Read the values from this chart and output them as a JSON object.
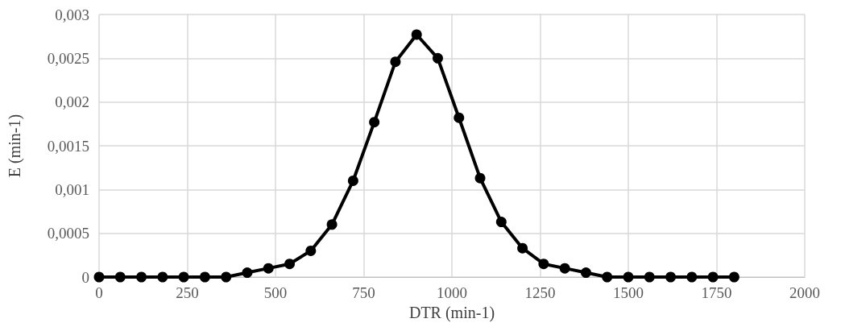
{
  "chart_data": {
    "type": "line",
    "xlabel": "DTR (min-1)",
    "ylabel": "E (min-1)",
    "x": [
      0,
      60,
      120,
      180,
      240,
      300,
      360,
      420,
      480,
      540,
      600,
      660,
      720,
      780,
      840,
      900,
      960,
      1020,
      1080,
      1140,
      1200,
      1260,
      1320,
      1380,
      1440,
      1500,
      1560,
      1620,
      1680,
      1740,
      1800
    ],
    "series": [
      {
        "color": "#000000",
        "values": [
          0,
          0,
          0,
          0,
          0,
          0,
          0,
          5e-05,
          0.0001,
          0.00015,
          0.0003,
          0.0006,
          0.0011,
          0.00177,
          0.00246,
          0.00277,
          0.0025,
          0.00182,
          0.00113,
          0.00063,
          0.00033,
          0.00015,
          0.0001,
          5e-05,
          0,
          0,
          0,
          0,
          0,
          0,
          0
        ]
      }
    ],
    "xlim": [
      0,
      2000
    ],
    "xticks": [
      0,
      250,
      500,
      750,
      1000,
      1250,
      1500,
      1750,
      2000
    ],
    "ylim": [
      0,
      0.003
    ],
    "yticks": [
      0,
      {
        "value": 0.0005,
        "label": "0,0005"
      },
      {
        "value": 0.001,
        "label": "0,001"
      },
      {
        "value": 0.0015,
        "label": "0,0015"
      },
      {
        "value": 0.002,
        "label": "0,002"
      },
      {
        "value": 0.0025,
        "label": "0,0025"
      },
      {
        "value": 0.003,
        "label": "0,003"
      }
    ],
    "grid": true,
    "marker": "circle",
    "line_style": "solid"
  }
}
